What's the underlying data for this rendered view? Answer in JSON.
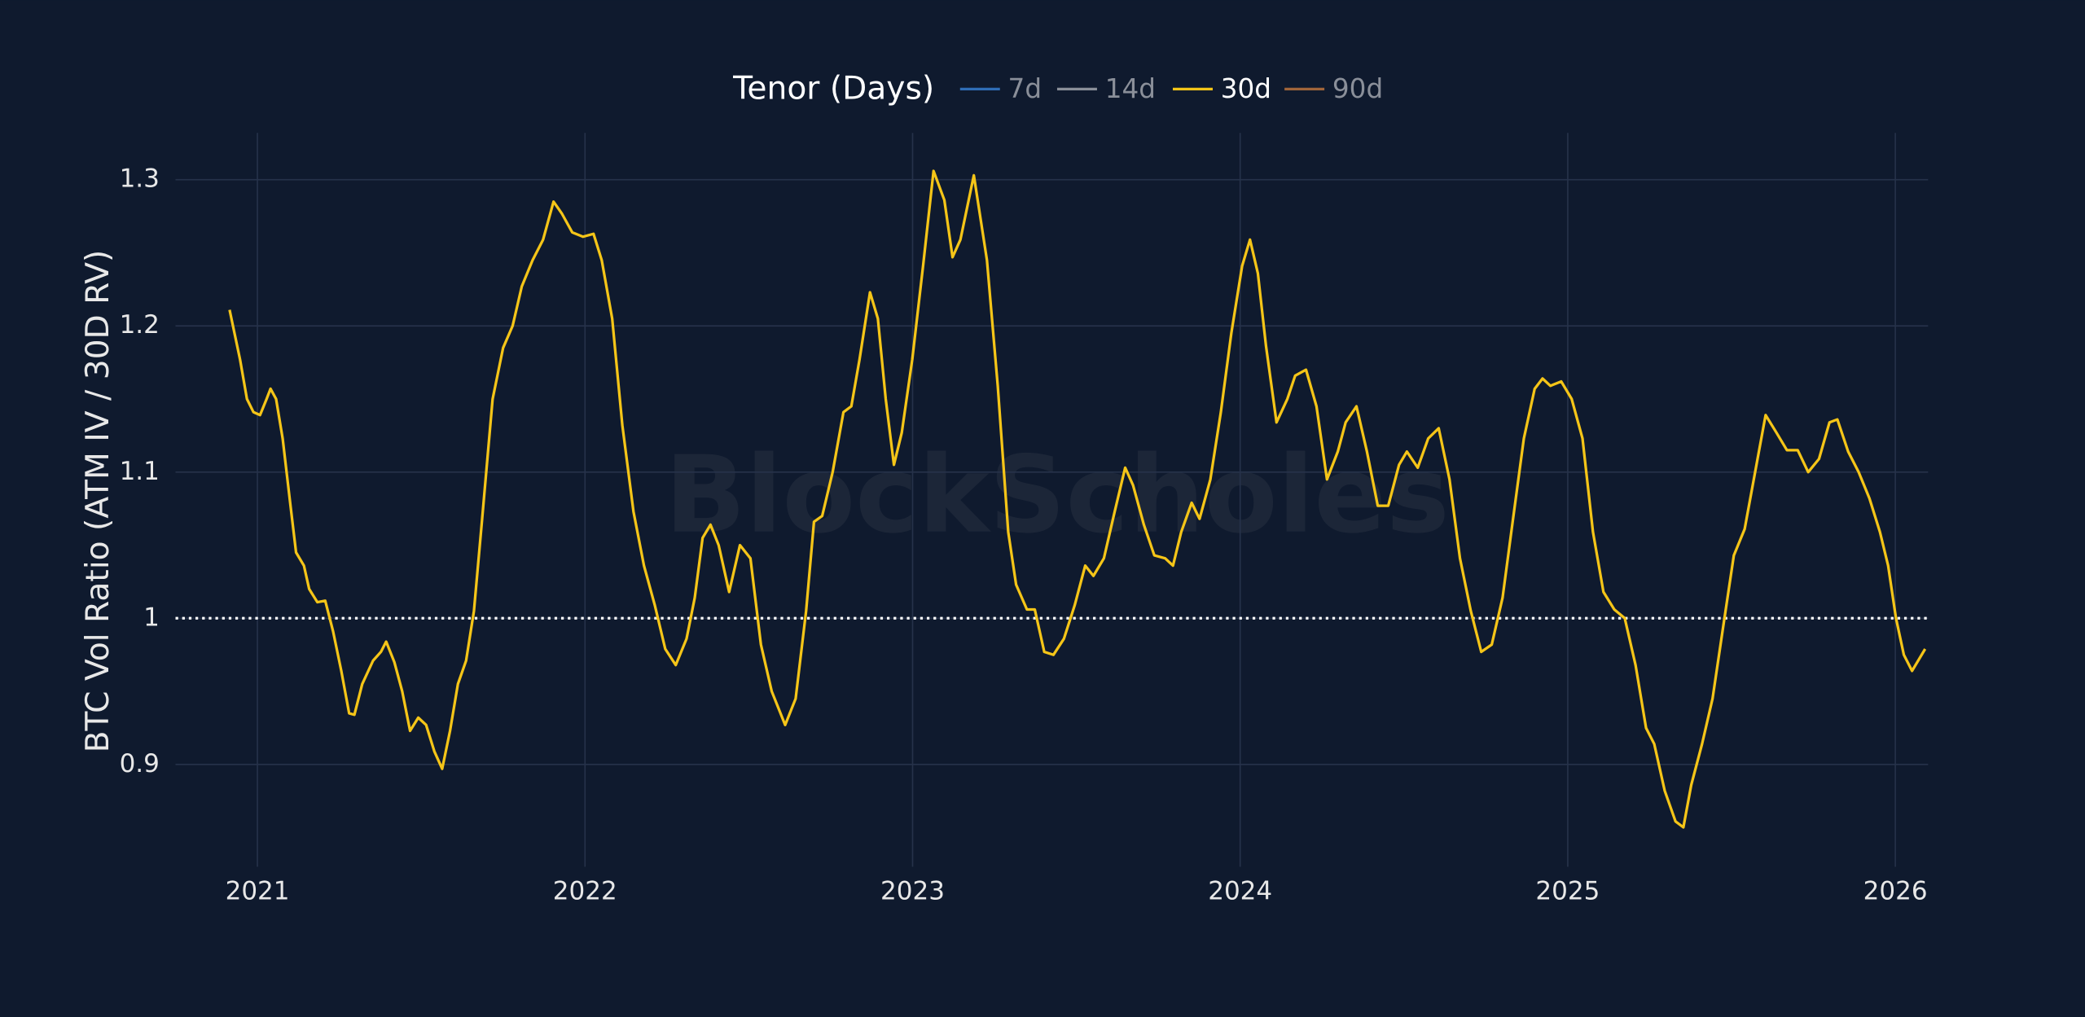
{
  "chart_data": {
    "type": "line",
    "watermark": "BlockScholes",
    "ylabel": "BTC Vol Ratio (ATM IV / 30D RV)",
    "legend_title": "Tenor (Days)",
    "legend": "top",
    "grid": true,
    "hline": 1,
    "xlim": [
      2020.75,
      2026.1
    ],
    "xticks": [
      2021,
      2022,
      2023,
      2024,
      2025,
      2026
    ],
    "ylim": [
      0.83,
      1.332
    ],
    "yticks": [
      0.9,
      1,
      1.1,
      1.2,
      1.3
    ],
    "x": [
      2020.915,
      2020.947,
      2020.968,
      2020.988,
      2021.008,
      2021.028,
      2021.04,
      2021.057,
      2021.077,
      2021.101,
      2021.118,
      2021.142,
      2021.158,
      2021.183,
      2021.207,
      2021.231,
      2021.256,
      2021.28,
      2021.296,
      2021.32,
      2021.353,
      2021.377,
      2021.393,
      2021.418,
      2021.442,
      2021.466,
      2021.491,
      2021.515,
      2021.54,
      2021.564,
      2021.588,
      2021.612,
      2021.637,
      2021.661,
      2021.686,
      2021.718,
      2021.75,
      2021.779,
      2021.807,
      2021.84,
      2021.872,
      2021.904,
      2021.929,
      2021.961,
      2021.994,
      2022.026,
      2022.051,
      2022.083,
      2022.114,
      2022.148,
      2022.18,
      2022.213,
      2022.245,
      2022.277,
      2022.31,
      2022.335,
      2022.359,
      2022.383,
      2022.408,
      2022.44,
      2022.473,
      2022.505,
      2022.537,
      2022.57,
      2022.611,
      2022.643,
      2022.675,
      2022.699,
      2022.724,
      2022.756,
      2022.789,
      2022.813,
      2022.838,
      2022.87,
      2022.894,
      2022.918,
      2022.943,
      2022.967,
      2022.999,
      2023.032,
      2023.064,
      2023.097,
      2023.122,
      2023.146,
      2023.187,
      2023.227,
      2023.26,
      2023.292,
      2023.316,
      2023.349,
      2023.373,
      2023.402,
      2023.43,
      2023.462,
      2023.495,
      2023.527,
      2023.552,
      2023.584,
      2023.617,
      2023.649,
      2023.673,
      2023.706,
      2023.738,
      2023.771,
      2023.795,
      2023.82,
      2023.852,
      2023.876,
      2023.909,
      2023.941,
      2023.973,
      2024.006,
      2024.03,
      2024.054,
      2024.079,
      2024.111,
      2024.144,
      2024.168,
      2024.201,
      2024.233,
      2024.265,
      2024.298,
      2024.322,
      2024.355,
      2024.387,
      2024.42,
      2024.452,
      2024.485,
      2024.509,
      2024.542,
      2024.574,
      2024.606,
      2024.639,
      2024.671,
      2024.704,
      2024.736,
      2024.768,
      2024.801,
      2024.833,
      2024.866,
      2024.899,
      2024.923,
      2024.947,
      2024.98,
      2025.012,
      2025.045,
      2025.077,
      2025.109,
      2025.142,
      2025.174,
      2025.207,
      2025.239,
      2025.264,
      2025.296,
      2025.329,
      2025.353,
      2025.377,
      2025.41,
      2025.442,
      2025.475,
      2025.507,
      2025.54,
      2025.572,
      2025.604,
      2025.637,
      2025.669,
      2025.702,
      2025.734,
      2025.767,
      2025.799,
      2025.823,
      2025.856,
      2025.888,
      2025.921,
      2025.953,
      2025.978,
      2026.002,
      2026.026,
      2026.051,
      2026.091
    ],
    "series": [
      {
        "name": "7d",
        "color": "#2f6db5",
        "visible": false
      },
      {
        "name": "14d",
        "color": "#8a8f99",
        "visible": false
      },
      {
        "name": "90d",
        "color": "#a0653a",
        "visible": false
      },
      {
        "name": "30d",
        "color": "#f5c518",
        "visible": true,
        "values": [
          1.211,
          1.177,
          1.15,
          1.141,
          1.139,
          1.15,
          1.157,
          1.15,
          1.123,
          1.077,
          1.045,
          1.036,
          1.02,
          1.011,
          1.012,
          0.991,
          0.964,
          0.935,
          0.934,
          0.955,
          0.971,
          0.977,
          0.984,
          0.97,
          0.95,
          0.923,
          0.932,
          0.927,
          0.909,
          0.897,
          0.923,
          0.955,
          0.971,
          1.005,
          1.068,
          1.15,
          1.185,
          1.2,
          1.227,
          1.245,
          1.259,
          1.285,
          1.277,
          1.264,
          1.261,
          1.263,
          1.245,
          1.205,
          1.132,
          1.073,
          1.036,
          1.009,
          0.979,
          0.968,
          0.986,
          1.014,
          1.055,
          1.064,
          1.05,
          1.018,
          1.05,
          1.041,
          0.982,
          0.95,
          0.927,
          0.945,
          1.005,
          1.066,
          1.07,
          1.1,
          1.141,
          1.145,
          1.177,
          1.223,
          1.205,
          1.15,
          1.105,
          1.127,
          1.177,
          1.241,
          1.306,
          1.286,
          1.247,
          1.259,
          1.303,
          1.245,
          1.159,
          1.059,
          1.023,
          1.006,
          1.006,
          0.977,
          0.975,
          0.986,
          1.009,
          1.036,
          1.029,
          1.041,
          1.073,
          1.103,
          1.091,
          1.064,
          1.043,
          1.041,
          1.036,
          1.059,
          1.079,
          1.068,
          1.095,
          1.141,
          1.195,
          1.241,
          1.259,
          1.236,
          1.186,
          1.134,
          1.15,
          1.166,
          1.17,
          1.145,
          1.095,
          1.114,
          1.134,
          1.145,
          1.114,
          1.077,
          1.077,
          1.105,
          1.114,
          1.103,
          1.123,
          1.13,
          1.095,
          1.041,
          1.005,
          0.977,
          0.982,
          1.014,
          1.068,
          1.123,
          1.157,
          1.164,
          1.159,
          1.162,
          1.15,
          1.123,
          1.059,
          1.018,
          1.006,
          1.0,
          0.968,
          0.925,
          0.914,
          0.882,
          0.861,
          0.857,
          0.886,
          0.914,
          0.945,
          0.995,
          1.043,
          1.061,
          1.1,
          1.139,
          1.127,
          1.115,
          1.115,
          1.1,
          1.109,
          1.134,
          1.136,
          1.114,
          1.1,
          1.082,
          1.059,
          1.036,
          1.0,
          0.975,
          0.964,
          0.979
        ]
      }
    ]
  }
}
